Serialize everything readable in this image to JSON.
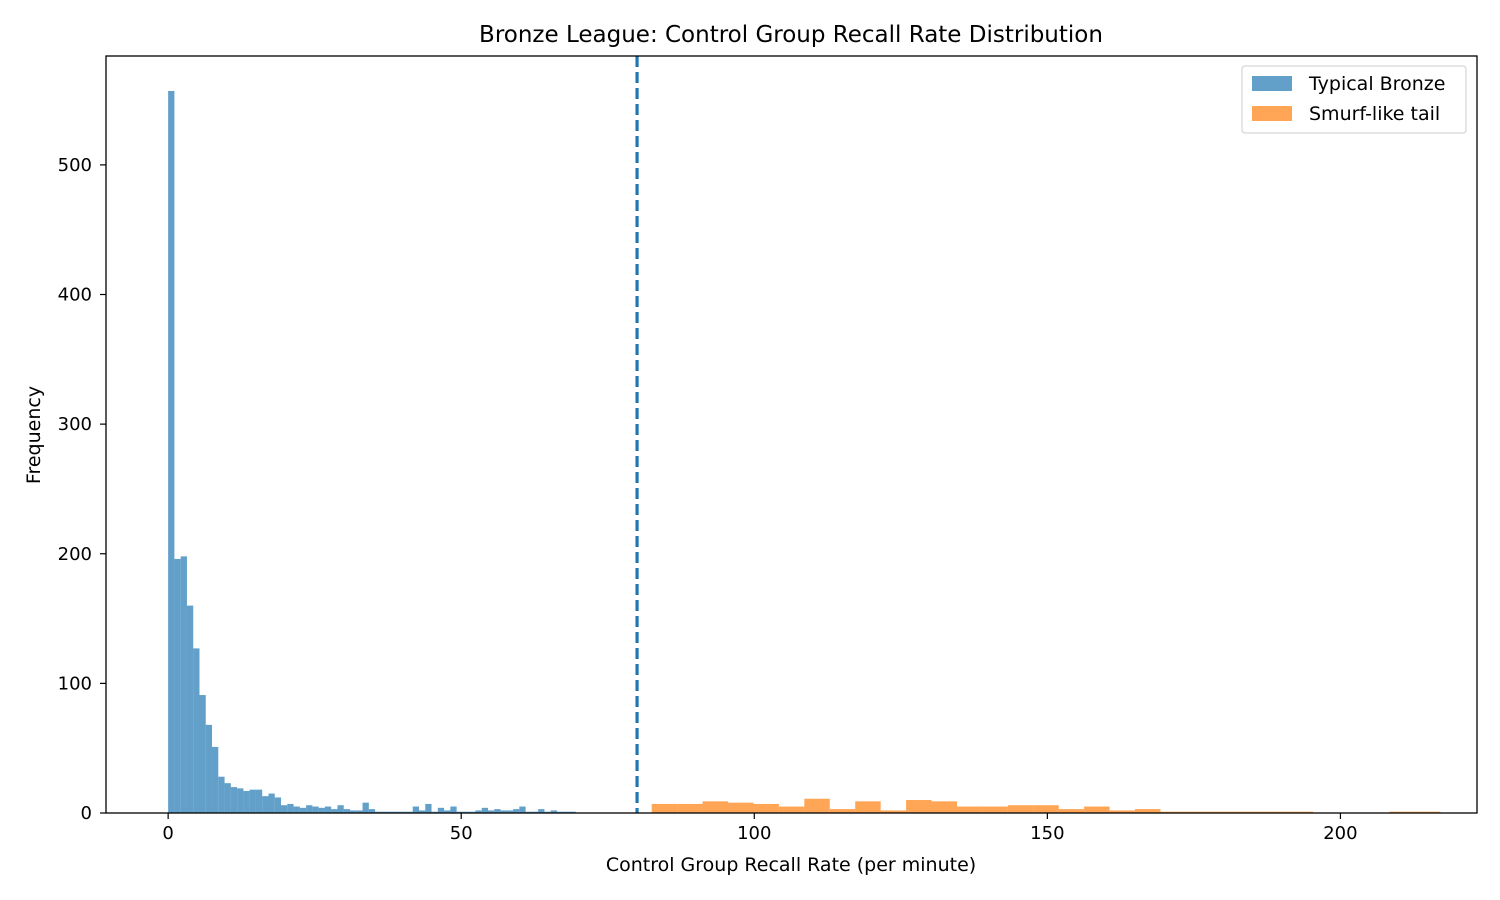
{
  "chart_data": {
    "type": "histogram",
    "title": "Bronze League: Control Group Recall Rate Distribution",
    "xlabel": "Control Group Recall Rate (per minute)",
    "ylabel": "Frequency",
    "xlim": [
      -10.6,
      223.3
    ],
    "ylim": [
      0,
      584
    ],
    "xticks": [
      0,
      50,
      100,
      150,
      200
    ],
    "yticks": [
      0,
      100,
      200,
      300,
      400,
      500
    ],
    "legend_position": "top-right",
    "threshold_line": {
      "x": 80,
      "style": "dashed",
      "color": "#1f77b4"
    },
    "series": [
      {
        "name": "Typical Bronze",
        "color": "#1f77b4",
        "opacity": 0.7,
        "bin_start": 0,
        "bin_width": 1.07,
        "values": [
          557,
          196,
          198,
          160,
          127,
          91,
          68,
          51,
          28,
          23,
          20,
          19,
          17,
          18,
          18,
          13,
          15,
          12,
          6,
          7,
          5,
          4,
          6,
          5,
          4,
          5,
          3,
          6,
          3,
          2,
          2,
          8,
          3,
          1,
          1,
          1,
          1,
          1,
          1,
          5,
          2,
          7,
          1,
          4,
          2,
          5,
          1,
          1,
          1,
          2,
          4,
          2,
          3,
          2,
          2,
          3,
          5,
          1,
          1,
          3,
          1,
          2,
          1,
          1,
          1
        ]
      },
      {
        "name": "Smurf-like tail",
        "color": "#ff7f0e",
        "opacity": 0.7,
        "bin_start": 82.5,
        "bin_width": 4.34,
        "values": [
          7,
          7,
          9,
          8,
          7,
          5,
          11,
          3,
          9,
          2,
          10,
          9,
          5,
          5,
          6,
          6,
          3,
          5,
          2,
          3,
          1,
          1,
          1,
          1,
          1,
          1,
          0,
          0,
          0,
          1,
          1
        ]
      }
    ]
  }
}
